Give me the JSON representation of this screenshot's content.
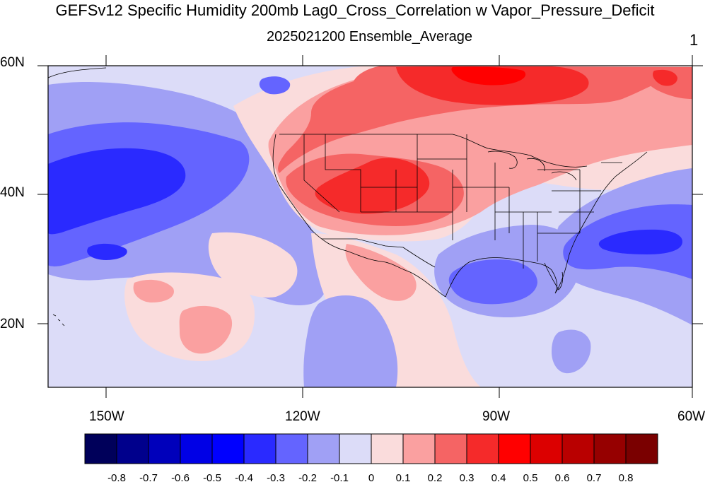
{
  "title": "GEFSv12 Specific Humidity 200mb Lag0_Cross_Correlation w Vapor_Pressure_Deficit",
  "subtitle": "2025021200 Ensemble_Average",
  "panel_label": "1",
  "lat_labels": [
    "60N",
    "40N",
    "20N"
  ],
  "lon_labels": [
    "150W",
    "120W",
    "90W",
    "60W"
  ],
  "colorbar": {
    "labels": [
      "-0.8",
      "-0.7",
      "-0.6",
      "-0.5",
      "-0.4",
      "-0.3",
      "-0.2",
      "-0.1",
      "0",
      "0.1",
      "0.2",
      "0.3",
      "0.4",
      "0.5",
      "0.6",
      "0.7",
      "0.8"
    ],
    "colors": [
      "#00005a",
      "#00008c",
      "#0000bb",
      "#0000e6",
      "#0000ff",
      "#2a2aff",
      "#6464ff",
      "#a0a0f5",
      "#dcdcf8",
      "#fadcdc",
      "#faa0a0",
      "#f56464",
      "#f52a2a",
      "#ff0000",
      "#dc0000",
      "#b90000",
      "#960000",
      "#7a0000"
    ]
  },
  "map": {
    "extent": {
      "lon": [
        -160,
        -60
      ],
      "lat": [
        10,
        60
      ]
    },
    "ocean_color": "#dcdcf8",
    "land_outline_color": "#000000"
  }
}
